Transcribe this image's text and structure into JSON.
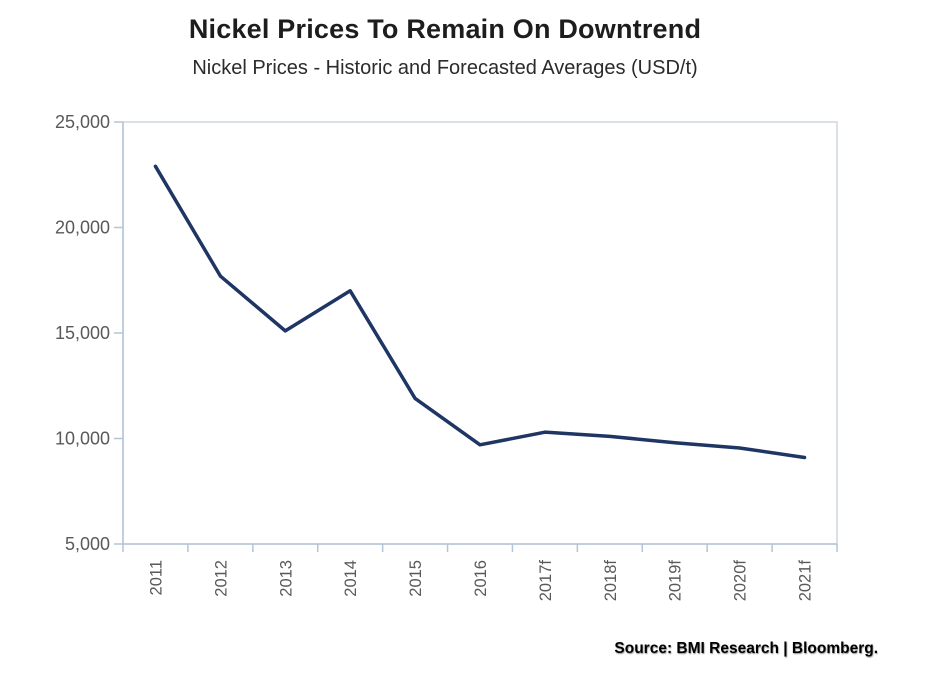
{
  "header": {
    "title": "Nickel Prices To Remain On Downtrend",
    "subtitle": "Nickel Prices - Historic and Forecasted Averages (USD/t)"
  },
  "source": {
    "label": "Source: BMI Research | Bloomberg."
  },
  "chart_data": {
    "type": "line",
    "title": "Nickel Prices To Remain On Downtrend",
    "subtitle": "Nickel Prices - Historic and Forecasted Averages (USD/t)",
    "categories": [
      "2011",
      "2012",
      "2013",
      "2014",
      "2015",
      "2016",
      "2017f",
      "2018f",
      "2019f",
      "2020f",
      "2021f"
    ],
    "series": [
      {
        "name": "Nickel price average (USD/t)",
        "values": [
          22900,
          17700,
          15100,
          17000,
          11900,
          9700,
          10300,
          10100,
          9800,
          9550,
          9100
        ]
      }
    ],
    "xlabel": "",
    "ylabel": "",
    "ylim": [
      5000,
      25000
    ],
    "yticks": [
      5000,
      10000,
      15000,
      20000,
      25000
    ],
    "grid": false,
    "legend": "none",
    "colors": {
      "line": "#1f3564",
      "axis": "#b5c4d7",
      "frame": "#cdd6e0",
      "tick_label": "#595959"
    }
  }
}
